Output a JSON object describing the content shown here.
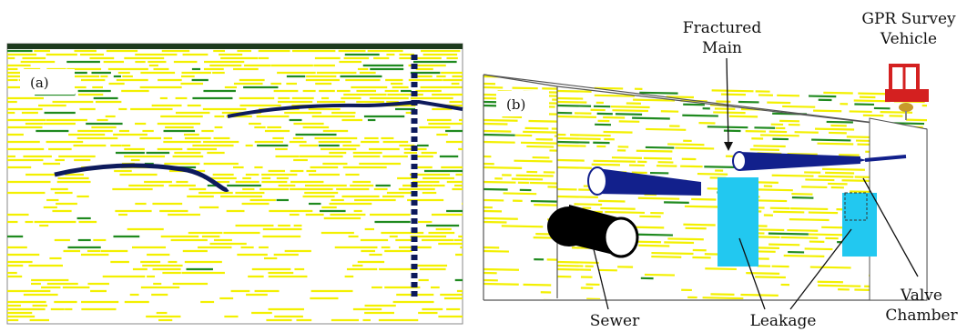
{
  "panels": [
    {
      "id": "a",
      "label": "(a)"
    },
    {
      "id": "b",
      "label": "(b)"
    }
  ],
  "annotations": {
    "fractured_main": [
      "Fractured",
      "Main"
    ],
    "vehicle": [
      "GPR Survey",
      "Vehicle"
    ],
    "sewer": "Sewer",
    "leakage": "Leakage",
    "valve_chamber": [
      "Valve",
      "Chamber"
    ]
  },
  "colors": {
    "background": "#ffffff",
    "radar_yellow": "#f3f000",
    "radar_green": "#1f8a1f",
    "radar_dark": "#0d1a5c",
    "main_pipe": "#12208c",
    "sewer_pipe": "#000000",
    "leak": "#22c8f0",
    "vehicle": "#d42020"
  }
}
